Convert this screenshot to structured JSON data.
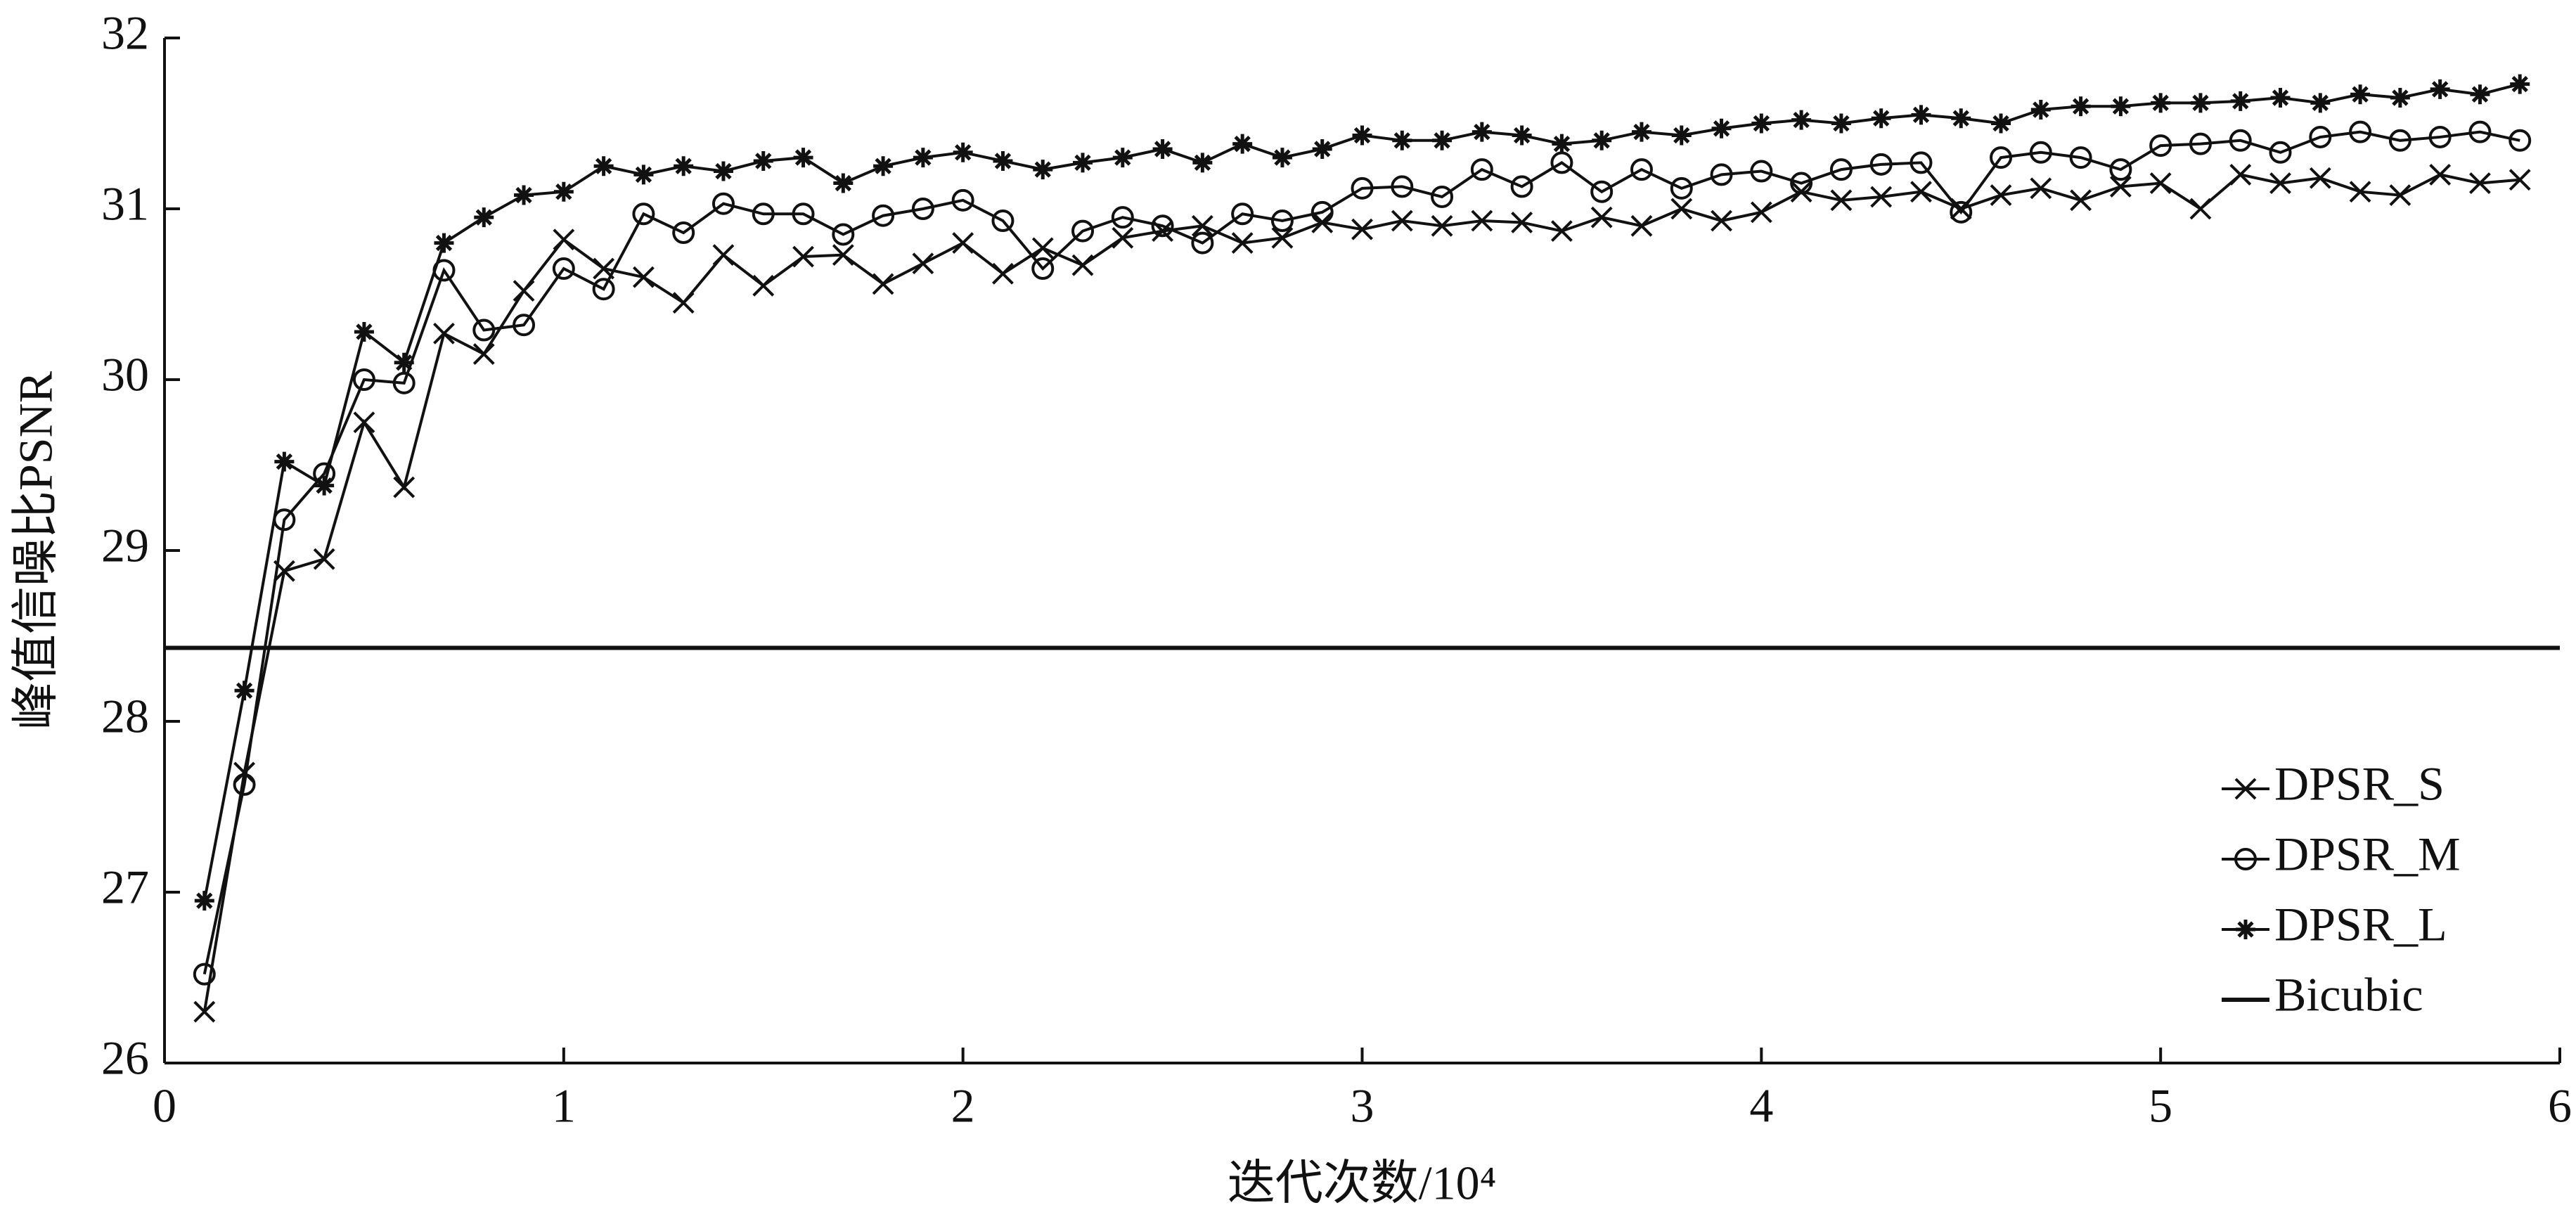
{
  "chart_data": {
    "type": "line",
    "x_label": "迭代次数/10⁴",
    "y_label": "峰值信噪比PSNR",
    "x": [
      0.1,
      0.2,
      0.3,
      0.4,
      0.5,
      0.6,
      0.7,
      0.8,
      0.9,
      1.0,
      1.1,
      1.2,
      1.3,
      1.4,
      1.5,
      1.6,
      1.7,
      1.8,
      1.9,
      2.0,
      2.1,
      2.2,
      2.3,
      2.4,
      2.5,
      2.6,
      2.7,
      2.8,
      2.9,
      3.0,
      3.1,
      3.2,
      3.3,
      3.4,
      3.5,
      3.6,
      3.7,
      3.8,
      3.9,
      4.0,
      4.1,
      4.2,
      4.3,
      4.4,
      4.5,
      4.6,
      4.7,
      4.8,
      4.9,
      5.0,
      5.1,
      5.2,
      5.3,
      5.4,
      5.5,
      5.6,
      5.7,
      5.8,
      5.9
    ],
    "series": [
      {
        "name": "DPSR_S",
        "color": "#111111",
        "marker": "x",
        "values": [
          26.3,
          27.7,
          28.88,
          28.95,
          29.75,
          29.37,
          30.27,
          30.15,
          30.52,
          30.82,
          30.65,
          30.6,
          30.45,
          30.73,
          30.55,
          30.72,
          30.73,
          30.56,
          30.68,
          30.8,
          30.62,
          30.77,
          30.67,
          30.83,
          30.87,
          30.9,
          30.8,
          30.83,
          30.92,
          30.88,
          30.93,
          30.9,
          30.93,
          30.92,
          30.87,
          30.95,
          30.9,
          31.0,
          30.93,
          30.98,
          31.1,
          31.05,
          31.07,
          31.1,
          31.0,
          31.08,
          31.12,
          31.05,
          31.13,
          31.15,
          31.0,
          31.2,
          31.15,
          31.18,
          31.1,
          31.08,
          31.2,
          31.15,
          31.17
        ]
      },
      {
        "name": "DPSR_M",
        "color": "#111111",
        "marker": "circle",
        "values": [
          26.52,
          27.63,
          29.18,
          29.45,
          30.0,
          29.98,
          30.64,
          30.29,
          30.32,
          30.65,
          30.53,
          30.97,
          30.86,
          31.03,
          30.97,
          30.97,
          30.85,
          30.96,
          31.0,
          31.05,
          30.93,
          30.65,
          30.87,
          30.95,
          30.9,
          30.8,
          30.97,
          30.93,
          30.98,
          31.12,
          31.13,
          31.07,
          31.23,
          31.13,
          31.27,
          31.1,
          31.23,
          31.12,
          31.2,
          31.22,
          31.15,
          31.23,
          31.26,
          31.27,
          30.98,
          31.3,
          31.33,
          31.3,
          31.23,
          31.37,
          31.38,
          31.4,
          31.33,
          31.42,
          31.45,
          31.4,
          31.42,
          31.45,
          31.4
        ]
      },
      {
        "name": "DPSR_L",
        "color": "#111111",
        "marker": "star",
        "values": [
          26.95,
          28.18,
          29.52,
          29.38,
          30.28,
          30.1,
          30.8,
          30.95,
          31.08,
          31.1,
          31.25,
          31.2,
          31.25,
          31.22,
          31.28,
          31.3,
          31.15,
          31.25,
          31.3,
          31.33,
          31.28,
          31.23,
          31.27,
          31.3,
          31.35,
          31.27,
          31.38,
          31.3,
          31.35,
          31.43,
          31.4,
          31.4,
          31.45,
          31.43,
          31.38,
          31.4,
          31.45,
          31.43,
          31.47,
          31.5,
          31.52,
          31.5,
          31.53,
          31.55,
          31.53,
          31.5,
          31.58,
          31.6,
          31.6,
          31.62,
          31.62,
          31.63,
          31.65,
          31.62,
          31.67,
          31.65,
          31.7,
          31.67,
          31.73
        ]
      },
      {
        "name": "Bicubic",
        "color": "#111111",
        "marker": "none",
        "x": [
          0,
          6
        ],
        "values": [
          28.43,
          28.43
        ]
      }
    ],
    "xlim": [
      0,
      6
    ],
    "xticks": [
      0,
      1,
      2,
      3,
      4,
      5,
      6
    ],
    "ylim": [
      26,
      32
    ],
    "yticks": [
      26,
      27,
      28,
      29,
      30,
      31,
      32
    ],
    "legend": "lower right"
  }
}
